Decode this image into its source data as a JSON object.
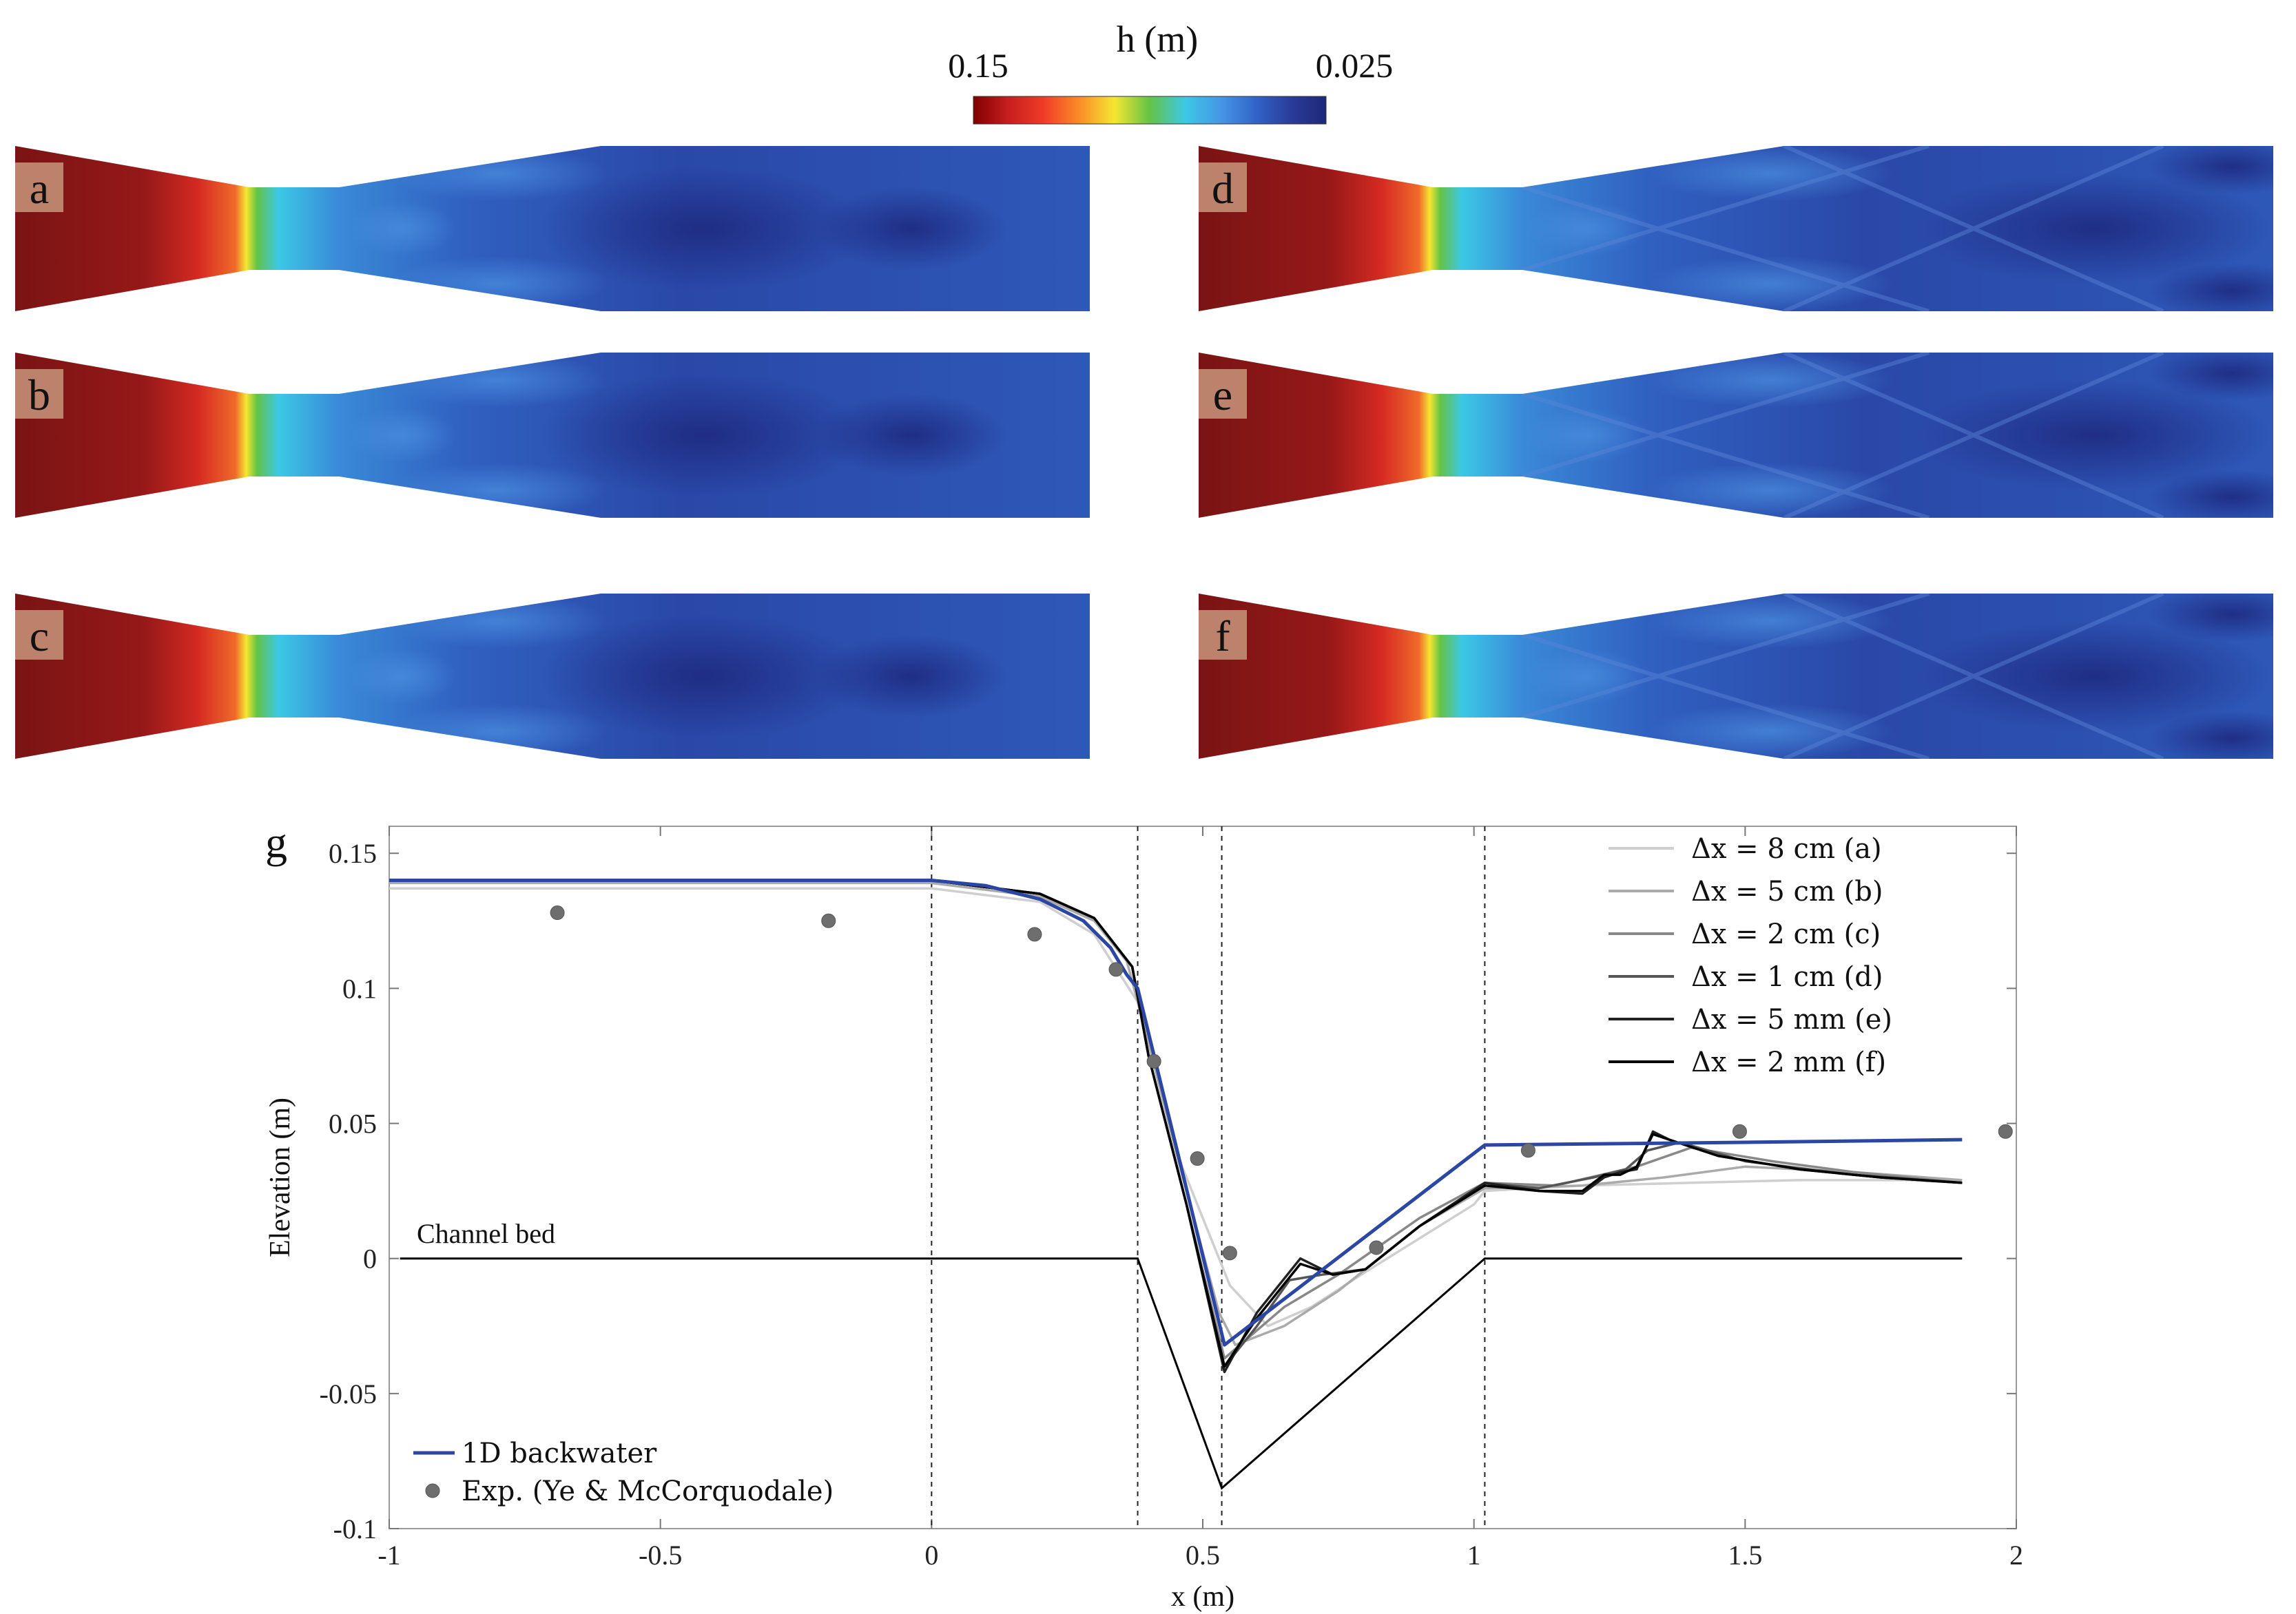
{
  "colorbar": {
    "title": "h (m)",
    "min_label": "0.15",
    "max_label": "0.025",
    "colors": [
      "#800000",
      "#c81e1e",
      "#f03c28",
      "#fa8c28",
      "#f5e632",
      "#64c346",
      "#3cc8e6",
      "#4696e6",
      "#3264c8",
      "#2a3c9a",
      "#1e2878"
    ]
  },
  "panels": [
    {
      "id": "a"
    },
    {
      "id": "b"
    },
    {
      "id": "c"
    },
    {
      "id": "d"
    },
    {
      "id": "e"
    },
    {
      "id": "f"
    }
  ],
  "chart_data": {
    "type": "line",
    "panel_label": "g",
    "xlabel": "x (m)",
    "ylabel": "Elevation (m)",
    "xlim": [
      -1,
      2
    ],
    "ylim": [
      -0.1,
      0.16
    ],
    "x_ticks": [
      "-1",
      "-0.5",
      "0",
      "0.5",
      "1",
      "1.5",
      "2"
    ],
    "x_tick_values": [
      -1,
      -0.5,
      0,
      0.5,
      1,
      1.5,
      2
    ],
    "y_ticks": [
      "0.15",
      "0.1",
      "0.05",
      "0",
      "-0.05",
      "-0.1"
    ],
    "y_tick_values": [
      0.15,
      0.1,
      0.05,
      0,
      -0.05,
      -0.1
    ],
    "vlines": [
      0,
      0.38,
      0.535,
      1.02
    ],
    "annotation": "Channel bed",
    "channel_bed": {
      "x": [
        -0.98,
        0.38,
        0.535,
        1.02,
        1.9
      ],
      "y": [
        0,
        0,
        -0.085,
        0,
        0
      ]
    },
    "series": [
      {
        "name": "Δx = 8 cm (a)",
        "color": "#cfcfcf",
        "x": [
          -1,
          -0.5,
          0,
          0.2,
          0.3,
          0.38,
          0.45,
          0.55,
          0.62,
          0.7,
          0.8,
          1.0,
          1.02,
          1.2,
          1.4,
          1.6,
          1.8,
          1.9
        ],
        "y": [
          0.137,
          0.137,
          0.137,
          0.132,
          0.12,
          0.095,
          0.04,
          -0.01,
          -0.025,
          -0.018,
          -0.005,
          0.02,
          0.025,
          0.027,
          0.028,
          0.029,
          0.029,
          0.028
        ]
      },
      {
        "name": "Δx = 5 cm (b)",
        "color": "#aaaaaa",
        "x": [
          -1,
          -0.5,
          0,
          0.2,
          0.3,
          0.36,
          0.4,
          0.45,
          0.53,
          0.56,
          0.65,
          0.75,
          0.9,
          1.02,
          1.2,
          1.35,
          1.5,
          1.7,
          1.9
        ],
        "y": [
          0.139,
          0.139,
          0.139,
          0.134,
          0.125,
          0.11,
          0.08,
          0.04,
          -0.02,
          -0.032,
          -0.025,
          -0.012,
          0.012,
          0.026,
          0.027,
          0.03,
          0.034,
          0.032,
          0.029
        ]
      },
      {
        "name": "Δx = 2 cm (c)",
        "color": "#888888",
        "x": [
          -1,
          -0.5,
          0,
          0.2,
          0.3,
          0.37,
          0.4,
          0.47,
          0.54,
          0.58,
          0.65,
          0.75,
          0.9,
          1.02,
          1.15,
          1.3,
          1.4,
          1.55,
          1.7,
          1.9
        ],
        "y": [
          0.14,
          0.14,
          0.14,
          0.135,
          0.126,
          0.108,
          0.075,
          0.02,
          -0.037,
          -0.03,
          -0.018,
          -0.006,
          0.015,
          0.028,
          0.027,
          0.034,
          0.041,
          0.036,
          0.032,
          0.028
        ]
      },
      {
        "name": "Δx = 1 cm (d)",
        "color": "#555555",
        "x": [
          -1,
          -0.5,
          0,
          0.2,
          0.3,
          0.37,
          0.4,
          0.47,
          0.54,
          0.6,
          0.66,
          0.72,
          0.8,
          0.9,
          1.02,
          1.12,
          1.22,
          1.28,
          1.32,
          1.38,
          1.5,
          1.7,
          1.9
        ],
        "y": [
          0.14,
          0.14,
          0.14,
          0.135,
          0.126,
          0.108,
          0.075,
          0.02,
          -0.04,
          -0.025,
          -0.008,
          -0.006,
          -0.004,
          0.012,
          0.028,
          0.026,
          0.03,
          0.033,
          0.04,
          0.043,
          0.036,
          0.031,
          0.028
        ]
      },
      {
        "name": "Δx = 5 mm (e)",
        "color": "#222222",
        "x": [
          -1,
          -0.5,
          0,
          0.2,
          0.3,
          0.37,
          0.4,
          0.47,
          0.54,
          0.6,
          0.68,
          0.74,
          0.8,
          0.9,
          1.02,
          1.12,
          1.2,
          1.24,
          1.27,
          1.3,
          1.33,
          1.36,
          1.45,
          1.6,
          1.75,
          1.9
        ],
        "y": [
          0.14,
          0.14,
          0.14,
          0.135,
          0.126,
          0.108,
          0.075,
          0.02,
          -0.042,
          -0.02,
          0.0,
          -0.006,
          -0.004,
          0.012,
          0.028,
          0.025,
          0.024,
          0.03,
          0.032,
          0.033,
          0.047,
          0.044,
          0.038,
          0.033,
          0.03,
          0.028
        ]
      },
      {
        "name": "Δx = 2 mm (f)",
        "color": "#000000",
        "x": [
          -1,
          -0.5,
          0,
          0.2,
          0.3,
          0.37,
          0.4,
          0.47,
          0.54,
          0.6,
          0.68,
          0.74,
          0.8,
          0.9,
          1.02,
          1.12,
          1.2,
          1.24,
          1.27,
          1.3,
          1.33,
          1.36,
          1.45,
          1.6,
          1.75,
          1.9
        ],
        "y": [
          0.14,
          0.14,
          0.14,
          0.135,
          0.126,
          0.108,
          0.075,
          0.02,
          -0.04,
          -0.022,
          -0.002,
          -0.006,
          -0.004,
          0.012,
          0.027,
          0.025,
          0.025,
          0.031,
          0.031,
          0.034,
          0.046,
          0.044,
          0.038,
          0.033,
          0.03,
          0.028
        ]
      },
      {
        "name": "1D backwater",
        "color": "#2b47a3",
        "x": [
          -1,
          -0.5,
          0,
          0.1,
          0.2,
          0.28,
          0.33,
          0.36,
          0.38,
          0.54,
          1.02,
          1.5,
          1.9
        ],
        "y": [
          0.14,
          0.14,
          0.14,
          0.138,
          0.133,
          0.125,
          0.115,
          0.105,
          0.1,
          -0.032,
          0.042,
          0.043,
          0.044
        ]
      }
    ],
    "experimental": {
      "name": "Exp. (Ye & McCorquodale)",
      "x": [
        -0.69,
        -0.19,
        0.19,
        0.34,
        0.41,
        0.49,
        0.55,
        0.82,
        1.1,
        1.49,
        1.98
      ],
      "y": [
        0.128,
        0.125,
        0.12,
        0.107,
        0.073,
        0.037,
        0.002,
        0.004,
        0.04,
        0.047,
        0.047
      ]
    },
    "legend_top_right": [
      "Δx = 8 cm (a)",
      "Δx = 5 cm (b)",
      "Δx = 2 cm (c)",
      "Δx = 1 cm (d)",
      "Δx = 5 mm (e)",
      "Δx = 2 mm (f)"
    ],
    "legend_bottom_left": [
      "1D backwater",
      "Exp. (Ye & McCorquodale)"
    ]
  }
}
